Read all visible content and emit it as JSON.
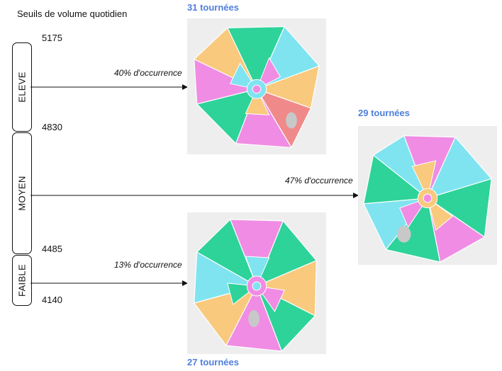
{
  "title": "Seuils de volume quotidien",
  "thresholds": [
    "5175",
    "4830",
    "4485",
    "4140"
  ],
  "bands": [
    "ELEVE",
    "MOYEN",
    "FAIBLE"
  ],
  "occurrences": [
    "40% d'occurrence",
    "47% d'occurrence",
    "13% d'occurrence"
  ],
  "tours": [
    "31 tournées",
    "29 tournées",
    "27 tournées"
  ],
  "colors": {
    "accent": "#4f7fdd",
    "zones": [
      "#f9c97d",
      "#f08ce4",
      "#2ed39a",
      "#7fe4f0",
      "#f08a8a",
      "#c8c8c8"
    ]
  }
}
